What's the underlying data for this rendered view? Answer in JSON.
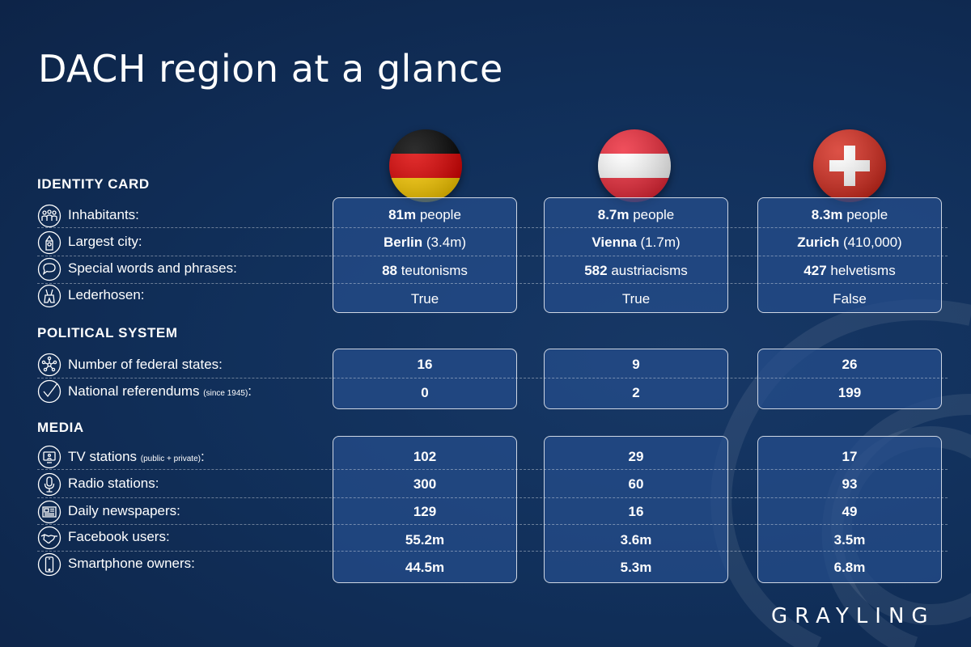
{
  "title": "DACH region at a glance",
  "brand": "GRAYLING",
  "countries": [
    {
      "name": "Germany",
      "flag_icon": "germany-flag-icon"
    },
    {
      "name": "Austria",
      "flag_icon": "austria-flag-icon"
    },
    {
      "name": "Switzerland",
      "flag_icon": "switzerland-flag-icon"
    }
  ],
  "sections": {
    "identity": {
      "heading": "IDENTITY CARD",
      "rows": [
        {
          "label": "Inhabitants:",
          "icon": "people-icon",
          "values": [
            {
              "bold": "81m",
              "rest": " people"
            },
            {
              "bold": "8.7m",
              "rest": " people"
            },
            {
              "bold": "8.3m",
              "rest": " people"
            }
          ]
        },
        {
          "label": "Largest city:",
          "icon": "landmark-icon",
          "values": [
            {
              "bold": "Berlin",
              "rest": " (3.4m)"
            },
            {
              "bold": "Vienna",
              "rest": " (1.7m)"
            },
            {
              "bold": "Zurich",
              "rest": " (410,000)"
            }
          ]
        },
        {
          "label": "Special words and phrases:",
          "icon": "speech-bubble-icon",
          "values": [
            {
              "bold": "88",
              "rest": " teutonisms"
            },
            {
              "bold": "582",
              "rest": " austriacisms"
            },
            {
              "bold": "427",
              "rest": " helvetisms"
            }
          ]
        },
        {
          "label": "Lederhosen:",
          "icon": "lederhosen-icon",
          "values": [
            {
              "bold": "",
              "rest": "True"
            },
            {
              "bold": "",
              "rest": "True"
            },
            {
              "bold": "",
              "rest": "False"
            }
          ]
        }
      ]
    },
    "political": {
      "heading": "POLITICAL SYSTEM",
      "rows": [
        {
          "label": "Number of federal states:",
          "icon": "network-icon",
          "values": [
            {
              "bold": "16",
              "rest": ""
            },
            {
              "bold": "9",
              "rest": ""
            },
            {
              "bold": "26",
              "rest": ""
            }
          ]
        },
        {
          "label": "National referendums",
          "note": "(since 1945)",
          "suffix": ":",
          "icon": "checkmark-icon",
          "values": [
            {
              "bold": "0",
              "rest": ""
            },
            {
              "bold": "2",
              "rest": ""
            },
            {
              "bold": "199",
              "rest": ""
            }
          ]
        }
      ]
    },
    "media": {
      "heading": "MEDIA",
      "rows": [
        {
          "label": "TV stations",
          "note": "(public + private)",
          "suffix": ":",
          "icon": "tv-icon",
          "values": [
            {
              "bold": "102",
              "rest": ""
            },
            {
              "bold": "29",
              "rest": ""
            },
            {
              "bold": "17",
              "rest": ""
            }
          ]
        },
        {
          "label": "Radio stations:",
          "icon": "microphone-icon",
          "values": [
            {
              "bold": "300",
              "rest": ""
            },
            {
              "bold": "60",
              "rest": ""
            },
            {
              "bold": "93",
              "rest": ""
            }
          ]
        },
        {
          "label": "Daily newspapers:",
          "icon": "newspaper-icon",
          "values": [
            {
              "bold": "129",
              "rest": ""
            },
            {
              "bold": "16",
              "rest": ""
            },
            {
              "bold": "49",
              "rest": ""
            }
          ]
        },
        {
          "label": "Facebook users:",
          "icon": "handshake-icon",
          "values": [
            {
              "bold": "55.2m",
              "rest": ""
            },
            {
              "bold": "3.6m",
              "rest": ""
            },
            {
              "bold": "3.5m",
              "rest": ""
            }
          ]
        },
        {
          "label": "Smartphone owners:",
          "icon": "smartphone-icon",
          "values": [
            {
              "bold": "44.5m",
              "rest": ""
            },
            {
              "bold": "5.3m",
              "rest": ""
            },
            {
              "bold": "6.8m",
              "rest": ""
            }
          ]
        }
      ]
    }
  },
  "colors": {
    "background": "#11305b",
    "card": "#264e8c",
    "germany": [
      "#000000",
      "#dd0000",
      "#ffce00"
    ],
    "austria": [
      "#ed2939",
      "#ffffff",
      "#ed2939"
    ],
    "switzerland": [
      "#d52b1e",
      "#ffffff"
    ]
  }
}
